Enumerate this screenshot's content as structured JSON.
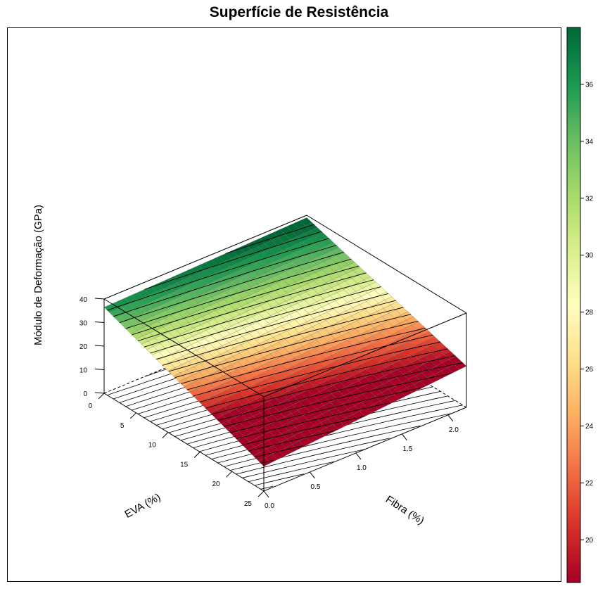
{
  "chart_data": {
    "type": "surface3d",
    "title": "Superfície de Resistência",
    "xlabel": "EVA (%)",
    "ylabel": "Fibra (%)",
    "zlabel": "Módulo de Deformação (GPa)",
    "x_ticks": [
      "0",
      "5",
      "10",
      "15",
      "20",
      "25"
    ],
    "y_ticks": [
      "0.0",
      "0.5",
      "1.0",
      "1.5",
      "2.0"
    ],
    "z_ticks": [
      "0",
      "10",
      "20",
      "30",
      "40"
    ],
    "xlim": [
      0,
      25
    ],
    "ylim": [
      0,
      2.2
    ],
    "zlim": [
      0,
      40
    ],
    "surface_corners": [
      {
        "eva": 0,
        "fibra": 0,
        "modulo": 36.5
      },
      {
        "eva": 25,
        "fibra": 0,
        "modulo": 10.5
      },
      {
        "eva": 0,
        "fibra": 2.2,
        "modulo": 39.0
      },
      {
        "eva": 25,
        "fibra": 2.2,
        "modulo": 17.5
      }
    ],
    "contours_on_base": true,
    "colorkey": {
      "ticks": [
        "20",
        "22",
        "24",
        "26",
        "28",
        "30",
        "32",
        "34",
        "36"
      ],
      "range": [
        18.5,
        38
      ],
      "colors": [
        "#a50026",
        "#d73027",
        "#f46d43",
        "#fdae61",
        "#fee08b",
        "#ffffbf",
        "#d9ef8b",
        "#a6d96a",
        "#66bd63",
        "#1a9850",
        "#006837"
      ]
    }
  }
}
